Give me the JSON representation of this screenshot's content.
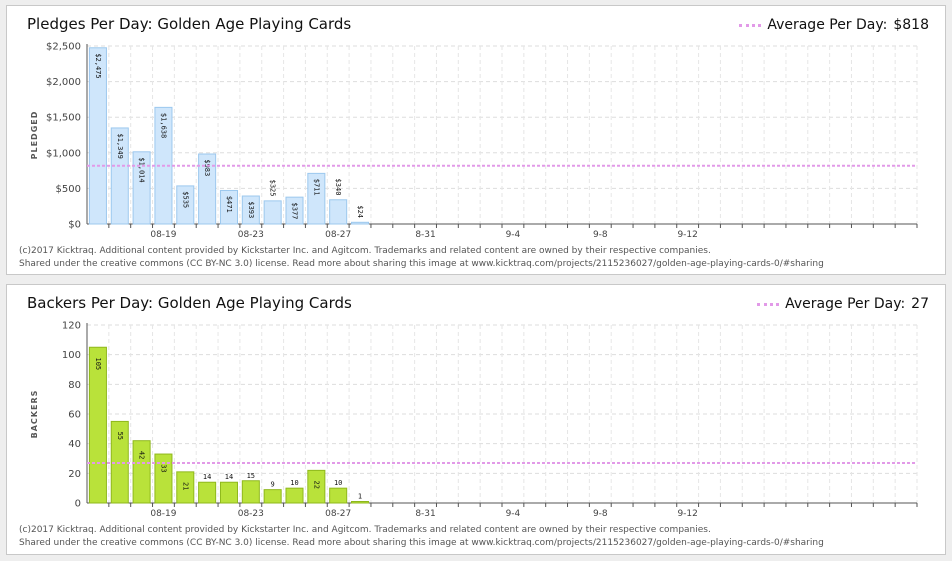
{
  "charts": [
    {
      "id": "pledges",
      "title": "Pledges Per Day: Golden Age Playing Cards",
      "average_label": "Average Per Day:",
      "average_value": "$818",
      "footer_line1": "(c)2017 Kicktraq. Additional content provided by Kickstarter Inc. and Agitcom. Trademarks and related content are owned by their respective companies.",
      "footer_line2": "Shared under the creative commons (CC BY-NC 3.0) license. Read more about sharing this image at www.kicktraq.com/projects/2115236027/golden-age-playing-cards-0/#sharing"
    },
    {
      "id": "backers",
      "title": "Backers Per Day: Golden Age Playing Cards",
      "average_label": "Average Per Day:",
      "average_value": "27",
      "footer_line1": "(c)2017 Kicktraq. Additional content provided by Kickstarter Inc. and Agitcom. Trademarks and related content are owned by their respective companies.",
      "footer_line2": "Shared under the creative commons (CC BY-NC 3.0) license. Read more about sharing this image at www.kicktraq.com/projects/2115236027/golden-age-playing-cards-0/#sharing"
    }
  ],
  "chart_data": [
    {
      "type": "bar",
      "title": "Pledges Per Day: Golden Age Playing Cards",
      "ylabel": "PLEDGED",
      "xlabel": "",
      "ylim": [
        0,
        2500
      ],
      "yticks": [
        0,
        500,
        1000,
        1500,
        2000,
        2500
      ],
      "ytick_labels": [
        "$0",
        "$500",
        "$1,000",
        "$1,500",
        "$2,000",
        "$2,500"
      ],
      "day_count": 38,
      "xtick_days": [
        3,
        7,
        11,
        15,
        19,
        23,
        27
      ],
      "xtick_labels": [
        "08-19",
        "08-23",
        "08-27",
        "8-31",
        "9-4",
        "9-8",
        "9-12"
      ],
      "values": [
        2475,
        1349,
        1014,
        1638,
        535,
        983,
        471,
        393,
        325,
        377,
        711,
        340,
        24
      ],
      "value_labels": [
        "$2,475",
        "$1,349",
        "$1,014",
        "$1,638",
        "$535",
        "$983",
        "$471",
        "$393",
        "$325",
        "$377",
        "$711",
        "$340",
        "$24"
      ],
      "average": 818,
      "grid": true,
      "legend": "top-right",
      "colors": {
        "bar_fill": "#cfe6fb",
        "bar_stroke": "#9cc8ee",
        "average_line": "#e29ae8"
      }
    },
    {
      "type": "bar",
      "title": "Backers Per Day: Golden Age Playing Cards",
      "ylabel": "BACKERS",
      "xlabel": "",
      "ylim": [
        0,
        120
      ],
      "yticks": [
        0,
        20,
        40,
        60,
        80,
        100,
        120
      ],
      "ytick_labels": [
        "0",
        "20",
        "40",
        "60",
        "80",
        "100",
        "120"
      ],
      "day_count": 38,
      "xtick_days": [
        3,
        7,
        11,
        15,
        19,
        23,
        27
      ],
      "xtick_labels": [
        "08-19",
        "08-23",
        "08-27",
        "8-31",
        "9-4",
        "9-8",
        "9-12"
      ],
      "values": [
        105,
        55,
        42,
        33,
        21,
        14,
        14,
        15,
        9,
        10,
        22,
        10,
        1
      ],
      "value_labels": [
        "105",
        "55",
        "42",
        "33",
        "21",
        "14",
        "14",
        "15",
        "9",
        "10",
        "22",
        "10",
        "1"
      ],
      "average": 27,
      "grid": true,
      "legend": "top-right",
      "colors": {
        "bar_fill": "#b9e23a",
        "bar_stroke": "#8fb81c",
        "average_line": "#e29ae8"
      }
    }
  ]
}
